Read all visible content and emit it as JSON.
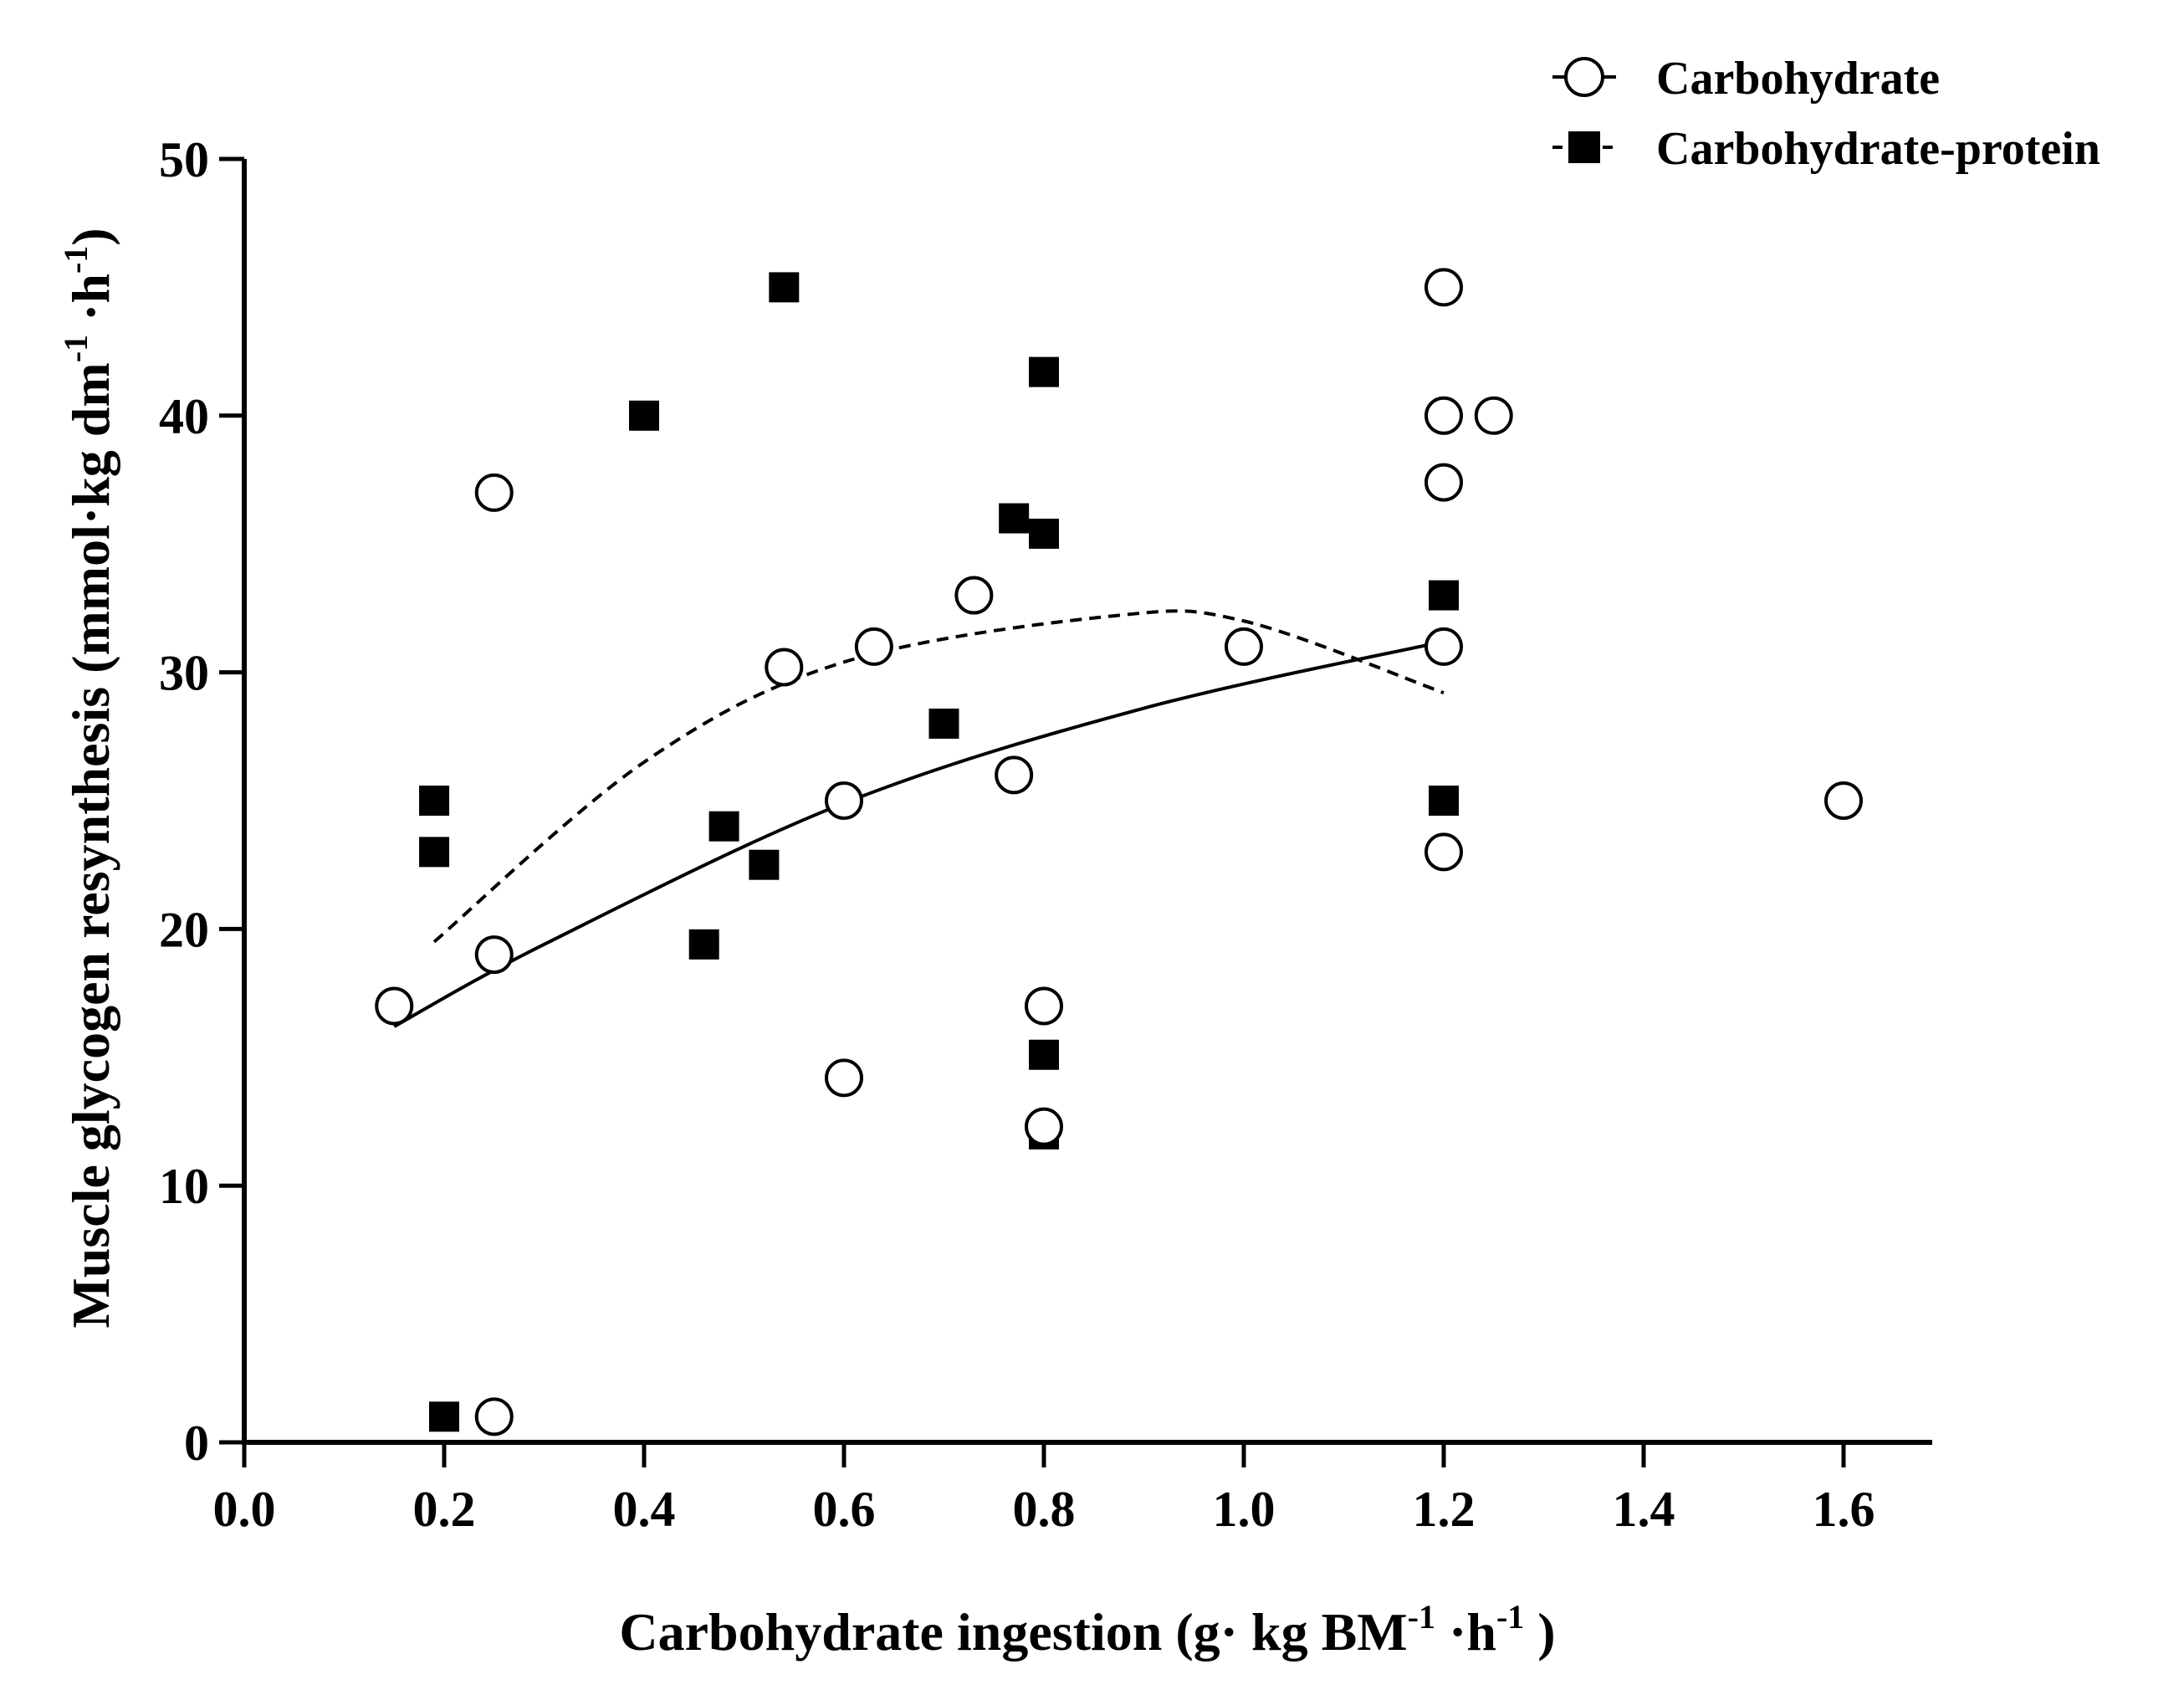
{
  "chart_data": {
    "type": "scatter",
    "xlabel": "Carbohydrate ingestion (g· kg BM",
    "xlabel_sup1": "-1",
    "xlabel_mid": " ·h",
    "xlabel_sup2": "-1",
    "xlabel_end": " )",
    "ylabel": "Muscle glycogen resynthesis (mmol·kg dm",
    "ylabel_sup1": "-1",
    "ylabel_mid": " ·h",
    "ylabel_sup2": "-1",
    "ylabel_end": ")",
    "xlim": [
      0.0,
      1.7
    ],
    "ylim": [
      0,
      50
    ],
    "xticks": [
      0.0,
      0.2,
      0.4,
      0.6,
      0.8,
      1.0,
      1.2,
      1.4,
      1.6
    ],
    "xtick_labels": [
      "0.0",
      "0.2",
      "0.4",
      "0.6",
      "0.8",
      "1.0",
      "1.2",
      "1.4",
      "1.6"
    ],
    "yticks": [
      0,
      10,
      20,
      30,
      40,
      50
    ],
    "ytick_labels": [
      "0",
      "10",
      "20",
      "30",
      "40",
      "50"
    ],
    "legend_position": "top-right",
    "series": [
      {
        "name": "Carbohydrate",
        "marker": "open-circle",
        "fit": "solid",
        "points": [
          [
            0.15,
            17
          ],
          [
            0.25,
            37
          ],
          [
            0.25,
            19
          ],
          [
            0.25,
            1
          ],
          [
            0.54,
            30.2
          ],
          [
            0.6,
            25
          ],
          [
            0.6,
            14.2
          ],
          [
            0.63,
            31
          ],
          [
            0.73,
            33
          ],
          [
            0.77,
            26
          ],
          [
            0.8,
            17
          ],
          [
            0.8,
            12.3
          ],
          [
            1.0,
            31
          ],
          [
            1.2,
            45
          ],
          [
            1.2,
            40
          ],
          [
            1.2,
            37.4
          ],
          [
            1.2,
            31
          ],
          [
            1.2,
            23
          ],
          [
            1.25,
            40
          ],
          [
            1.6,
            25
          ]
        ]
      },
      {
        "name": "Carbohydrate-protein",
        "marker": "filled-square",
        "fit": "dashed",
        "points": [
          [
            0.19,
            25
          ],
          [
            0.19,
            23
          ],
          [
            0.2,
            1
          ],
          [
            0.4,
            40
          ],
          [
            0.46,
            19.4
          ],
          [
            0.48,
            24
          ],
          [
            0.52,
            22.5
          ],
          [
            0.54,
            45
          ],
          [
            0.7,
            28
          ],
          [
            0.77,
            36
          ],
          [
            0.8,
            41.7
          ],
          [
            0.8,
            35.4
          ],
          [
            0.8,
            15.1
          ],
          [
            0.8,
            12
          ],
          [
            1.2,
            33
          ],
          [
            1.2,
            25
          ]
        ]
      }
    ],
    "fit_lines": [
      {
        "series": "Carbohydrate",
        "style": "solid",
        "points": [
          [
            0.15,
            16.2
          ],
          [
            0.3,
            19.4
          ],
          [
            0.6,
            24.9
          ],
          [
            0.9,
            28.6
          ],
          [
            1.2,
            31.2
          ]
        ]
      },
      {
        "series": "Carbohydrate-protein",
        "style": "dashed",
        "points": [
          [
            0.19,
            19.5
          ],
          [
            0.4,
            26.5
          ],
          [
            0.6,
            30.4
          ],
          [
            0.87,
            32.2
          ],
          [
            1.0,
            32.0
          ],
          [
            1.2,
            29.2
          ]
        ]
      }
    ]
  }
}
